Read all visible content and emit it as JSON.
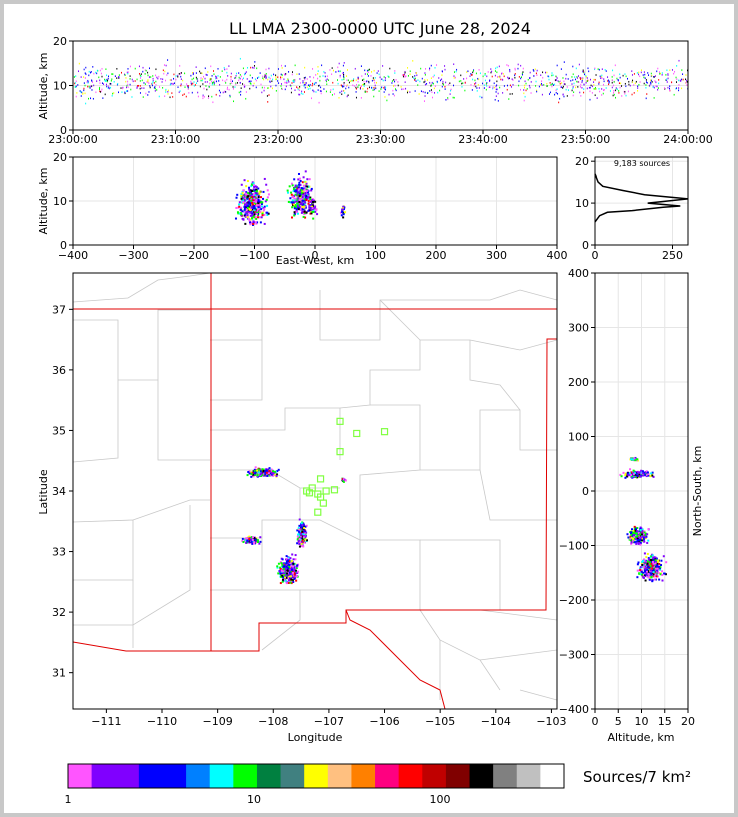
{
  "chart_data": [
    {
      "panel": "time-height",
      "type": "scatter",
      "title": "LL LMA 2300-0000 UTC June 28, 2024",
      "xlabel": "",
      "ylabel": "Altitude, km",
      "xlim": [
        "23:00:00",
        "24:00:00"
      ],
      "ylim": [
        0,
        20
      ],
      "xticks": [
        "23:00:00",
        "23:10:00",
        "23:20:00",
        "23:30:00",
        "23:40:00",
        "23:50:00",
        "24:00:00"
      ],
      "yticks": [
        0,
        10,
        20
      ],
      "source_band": {
        "alt_center_km": 11,
        "alt_spread_km": 3,
        "start_min": 0,
        "end_min": 60
      },
      "grid": true
    },
    {
      "panel": "east-west-height",
      "type": "scatter",
      "xlabel": "East-West, km",
      "ylabel": "Altitude, km",
      "xlim": [
        -400,
        400
      ],
      "ylim": [
        0,
        20
      ],
      "xticks": [
        -400,
        -300,
        -200,
        -100,
        0,
        100,
        200,
        300,
        400
      ],
      "yticks": [
        0,
        10,
        20
      ],
      "clusters": [
        {
          "x_km": -105,
          "alt_km": 9.5,
          "x_spread": 22,
          "alt_spread": 4
        },
        {
          "x_km": -25,
          "alt_km": 11,
          "x_spread": 16,
          "alt_spread": 4
        },
        {
          "x_km": -5,
          "alt_km": 9,
          "x_spread": 6,
          "alt_spread": 2
        },
        {
          "x_km": 45,
          "alt_km": 8,
          "x_spread": 3,
          "alt_spread": 1.5
        }
      ],
      "grid": true
    },
    {
      "panel": "altitude-histogram",
      "type": "line",
      "annotation": "9,183 sources",
      "xlim": [
        0,
        300
      ],
      "ylim": [
        0,
        21
      ],
      "xticks": [
        0,
        250
      ],
      "yticks": [
        0,
        10,
        20
      ],
      "x": [
        0,
        5,
        15,
        40,
        120,
        220,
        275,
        170,
        300,
        160,
        90,
        25,
        10,
        5,
        3,
        0
      ],
      "y": [
        5.5,
        6,
        7,
        7.8,
        8.2,
        9,
        9.3,
        10,
        11,
        12,
        13,
        14,
        15,
        16,
        16.5,
        17
      ]
    },
    {
      "panel": "plan-view-map",
      "type": "scatter",
      "xlabel": "Longitude",
      "ylabel": "Latitude",
      "xlim": [
        -111.6,
        -102.9
      ],
      "ylim": [
        30.4,
        37.6
      ],
      "xticks": [
        -111,
        -110,
        -109,
        -108,
        -107,
        -106,
        -105,
        -104,
        -103
      ],
      "yticks": [
        31,
        32,
        33,
        34,
        35,
        36,
        37
      ],
      "stations": [
        {
          "lon": -106.8,
          "lat": 35.15
        },
        {
          "lon": -106.5,
          "lat": 34.95
        },
        {
          "lon": -106.0,
          "lat": 34.98
        },
        {
          "lon": -106.8,
          "lat": 34.65
        },
        {
          "lon": -107.15,
          "lat": 34.2
        },
        {
          "lon": -107.3,
          "lat": 34.05
        },
        {
          "lon": -107.35,
          "lat": 33.97
        },
        {
          "lon": -107.4,
          "lat": 34.0
        },
        {
          "lon": -107.2,
          "lat": 33.95
        },
        {
          "lon": -107.05,
          "lat": 34.0
        },
        {
          "lon": -106.9,
          "lat": 34.02
        },
        {
          "lon": -107.15,
          "lat": 33.9
        },
        {
          "lon": -107.1,
          "lat": 33.8
        },
        {
          "lon": -107.2,
          "lat": 33.65
        }
      ],
      "source_clusters": [
        {
          "lon": -108.2,
          "lat": 34.32,
          "dlon": 0.2,
          "dlat": 0.05
        },
        {
          "lon": -107.5,
          "lat": 33.3,
          "dlon": 0.06,
          "dlat": 0.15
        },
        {
          "lon": -108.4,
          "lat": 33.2,
          "dlon": 0.12,
          "dlat": 0.04
        },
        {
          "lon": -107.75,
          "lat": 32.7,
          "dlon": 0.12,
          "dlat": 0.15
        },
        {
          "lon": -106.75,
          "lat": 34.2,
          "dlon": 0.03,
          "dlat": 0.02
        }
      ],
      "grid": true
    },
    {
      "panel": "altitude-north-south",
      "type": "scatter",
      "xlabel": "Altitude, km",
      "ylabel": "North-South, km",
      "xlim": [
        0,
        20
      ],
      "ylim": [
        -400,
        400
      ],
      "xticks": [
        0,
        5,
        10,
        15,
        20
      ],
      "yticks": [
        -400,
        -300,
        -200,
        -100,
        0,
        100,
        200,
        300,
        400
      ],
      "clusters": [
        {
          "alt_km": 9,
          "y_km": 33,
          "alt_spread": 3,
          "y_spread": 6
        },
        {
          "alt_km": 8,
          "y_km": 60,
          "alt_spread": 1,
          "y_spread": 2
        },
        {
          "alt_km": 9,
          "y_km": -80,
          "alt_spread": 2,
          "y_spread": 15
        },
        {
          "alt_km": 12,
          "y_km": -140,
          "alt_spread": 2.5,
          "y_spread": 20
        }
      ],
      "grid": true
    },
    {
      "panel": "colorbar",
      "type": "heatmap",
      "title": "Sources/7 km²",
      "tick_labels": [
        "1",
        "10",
        "100"
      ],
      "colors": [
        "#ff55ff",
        "#8000ff",
        "#8000ff",
        "#0000ff",
        "#0000ff",
        "#0080ff",
        "#00ffff",
        "#00ff00",
        "#008040",
        "#408080",
        "#ffff00",
        "#ffc080",
        "#ff8000",
        "#ff0080",
        "#ff0000",
        "#c00000",
        "#800000",
        "#000000",
        "#808080",
        "#c0c0c0",
        "#ffffff"
      ]
    }
  ]
}
